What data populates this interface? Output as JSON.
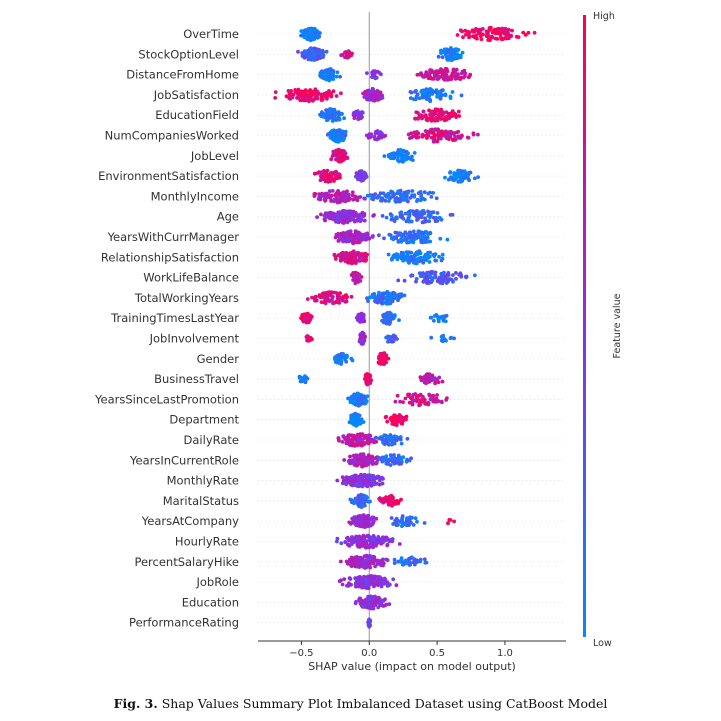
{
  "chart_data": {
    "type": "scatter",
    "subtype": "shap-beeswarm-summary",
    "xlabel": "SHAP value (impact on model output)",
    "x_ticks": [
      -0.5,
      0.0,
      0.5,
      1.0
    ],
    "x_tick_labels": [
      "−0.5",
      "0.0",
      "0.5",
      "1.0"
    ],
    "xlim": [
      -0.82,
      1.45
    ],
    "zero_line": true,
    "colorbar": {
      "label": "Feature value",
      "high_label": "High",
      "low_label": "Low",
      "high_color": "#ff0052",
      "low_color": "#008bfb"
    },
    "features": [
      {
        "name": "OverTime",
        "clusters": [
          {
            "c": -0.43,
            "w": 0.1,
            "v": 0.05,
            "n": 110
          },
          {
            "c": 0.9,
            "w": 0.42,
            "v": 0.95,
            "n": 100
          }
        ]
      },
      {
        "name": "StockOptionLevel",
        "clusters": [
          {
            "c": -0.42,
            "w": 0.14,
            "v": 0.25,
            "n": 90
          },
          {
            "c": -0.16,
            "w": 0.08,
            "v": 0.85,
            "n": 20
          },
          {
            "c": 0.6,
            "w": 0.14,
            "v": 0.05,
            "n": 65
          }
        ]
      },
      {
        "name": "DistanceFromHome",
        "clusters": [
          {
            "c": -0.3,
            "w": 0.1,
            "v": 0.05,
            "n": 65
          },
          {
            "c": 0.04,
            "w": 0.09,
            "v": 0.5,
            "n": 20
          },
          {
            "c": 0.56,
            "w": 0.3,
            "v": 0.8,
            "n": 100
          }
        ]
      },
      {
        "name": "JobSatisfaction",
        "clusters": [
          {
            "c": -0.45,
            "w": 0.35,
            "v": 0.9,
            "n": 120
          },
          {
            "c": 0.03,
            "w": 0.12,
            "v": 0.55,
            "n": 70
          },
          {
            "c": 0.45,
            "w": 0.28,
            "v": 0.1,
            "n": 70
          }
        ]
      },
      {
        "name": "EducationField",
        "clusters": [
          {
            "c": -0.28,
            "w": 0.14,
            "v": 0.1,
            "n": 80
          },
          {
            "c": -0.08,
            "w": 0.08,
            "v": 0.55,
            "n": 25
          },
          {
            "c": 0.5,
            "w": 0.28,
            "v": 0.9,
            "n": 80
          }
        ]
      },
      {
        "name": "NumCompaniesWorked",
        "clusters": [
          {
            "c": -0.23,
            "w": 0.12,
            "v": 0.1,
            "n": 80
          },
          {
            "c": 0.06,
            "w": 0.1,
            "v": 0.55,
            "n": 30
          },
          {
            "c": 0.5,
            "w": 0.38,
            "v": 0.8,
            "n": 100
          }
        ]
      },
      {
        "name": "JobLevel",
        "clusters": [
          {
            "c": -0.22,
            "w": 0.1,
            "v": 0.85,
            "n": 75
          },
          {
            "c": 0.24,
            "w": 0.18,
            "v": 0.05,
            "n": 70
          }
        ]
      },
      {
        "name": "EnvironmentSatisfaction",
        "clusters": [
          {
            "c": -0.3,
            "w": 0.15,
            "v": 0.9,
            "n": 70
          },
          {
            "c": -0.06,
            "w": 0.07,
            "v": 0.45,
            "n": 40
          },
          {
            "c": 0.67,
            "w": 0.18,
            "v": 0.05,
            "n": 55
          }
        ]
      },
      {
        "name": "MonthlyIncome",
        "clusters": [
          {
            "c": -0.22,
            "w": 0.28,
            "v": 0.65,
            "n": 100
          },
          {
            "c": 0.25,
            "w": 0.38,
            "v": 0.15,
            "n": 90
          }
        ]
      },
      {
        "name": "Age",
        "clusters": [
          {
            "c": -0.18,
            "w": 0.28,
            "v": 0.55,
            "n": 150
          },
          {
            "c": 0.35,
            "w": 0.38,
            "v": 0.2,
            "n": 90
          }
        ]
      },
      {
        "name": "YearsWithCurrManager",
        "clusters": [
          {
            "c": -0.12,
            "w": 0.22,
            "v": 0.6,
            "n": 110
          },
          {
            "c": 0.33,
            "w": 0.35,
            "v": 0.15,
            "n": 90
          }
        ]
      },
      {
        "name": "RelationshipSatisfaction",
        "clusters": [
          {
            "c": -0.12,
            "w": 0.2,
            "v": 0.8,
            "n": 110
          },
          {
            "c": 0.35,
            "w": 0.33,
            "v": 0.1,
            "n": 85
          }
        ]
      },
      {
        "name": "WorkLifeBalance",
        "clusters": [
          {
            "c": -0.1,
            "w": 0.06,
            "v": 0.7,
            "n": 55
          },
          {
            "c": 0.5,
            "w": 0.38,
            "v": 0.25,
            "n": 90
          }
        ]
      },
      {
        "name": "TotalWorkingYears",
        "clusters": [
          {
            "c": -0.28,
            "w": 0.22,
            "v": 0.85,
            "n": 70
          },
          {
            "c": 0.12,
            "w": 0.22,
            "v": 0.15,
            "n": 95
          }
        ]
      },
      {
        "name": "TrainingTimesLastYear",
        "clusters": [
          {
            "c": -0.46,
            "w": 0.08,
            "v": 0.92,
            "n": 35
          },
          {
            "c": -0.06,
            "w": 0.05,
            "v": 0.55,
            "n": 35
          },
          {
            "c": 0.14,
            "w": 0.1,
            "v": 0.12,
            "n": 55
          },
          {
            "c": 0.52,
            "w": 0.16,
            "v": 0.05,
            "n": 20
          }
        ]
      },
      {
        "name": "JobInvolvement",
        "clusters": [
          {
            "c": -0.44,
            "w": 0.05,
            "v": 0.95,
            "n": 15
          },
          {
            "c": -0.05,
            "w": 0.04,
            "v": 0.6,
            "n": 55
          },
          {
            "c": 0.16,
            "w": 0.07,
            "v": 0.25,
            "n": 25
          },
          {
            "c": 0.55,
            "w": 0.12,
            "v": 0.05,
            "n": 15
          }
        ]
      },
      {
        "name": "Gender",
        "clusters": [
          {
            "c": -0.2,
            "w": 0.1,
            "v": 0.05,
            "n": 45
          },
          {
            "c": 0.1,
            "w": 0.07,
            "v": 0.95,
            "n": 65
          }
        ]
      },
      {
        "name": "BusinessTravel",
        "clusters": [
          {
            "c": -0.48,
            "w": 0.07,
            "v": 0.05,
            "n": 18
          },
          {
            "c": -0.01,
            "w": 0.04,
            "v": 0.95,
            "n": 55
          },
          {
            "c": 0.45,
            "w": 0.15,
            "v": 0.7,
            "n": 45
          }
        ]
      },
      {
        "name": "YearsSinceLastPromotion",
        "clusters": [
          {
            "c": -0.08,
            "w": 0.1,
            "v": 0.1,
            "n": 90
          },
          {
            "c": 0.38,
            "w": 0.3,
            "v": 0.8,
            "n": 60
          }
        ]
      },
      {
        "name": "Department",
        "clusters": [
          {
            "c": -0.1,
            "w": 0.07,
            "v": 0.05,
            "n": 85
          },
          {
            "c": 0.2,
            "w": 0.14,
            "v": 0.95,
            "n": 45
          }
        ]
      },
      {
        "name": "DailyRate",
        "clusters": [
          {
            "c": -0.08,
            "w": 0.22,
            "v": 0.7,
            "n": 100
          },
          {
            "c": 0.15,
            "w": 0.18,
            "v": 0.2,
            "n": 50
          }
        ]
      },
      {
        "name": "YearsInCurrentRole",
        "clusters": [
          {
            "c": -0.05,
            "w": 0.2,
            "v": 0.65,
            "n": 120
          },
          {
            "c": 0.18,
            "w": 0.18,
            "v": 0.15,
            "n": 50
          }
        ]
      },
      {
        "name": "MonthlyRate",
        "clusters": [
          {
            "c": -0.05,
            "w": 0.25,
            "v": 0.5,
            "n": 130
          }
        ]
      },
      {
        "name": "MaritalStatus",
        "clusters": [
          {
            "c": -0.06,
            "w": 0.1,
            "v": 0.2,
            "n": 80
          },
          {
            "c": 0.15,
            "w": 0.12,
            "v": 0.95,
            "n": 45
          }
        ]
      },
      {
        "name": "YearsAtCompany",
        "clusters": [
          {
            "c": -0.04,
            "w": 0.15,
            "v": 0.55,
            "n": 110
          },
          {
            "c": 0.25,
            "w": 0.2,
            "v": 0.15,
            "n": 40
          },
          {
            "c": 0.6,
            "w": 0.07,
            "v": 0.95,
            "n": 4
          }
        ]
      },
      {
        "name": "HourlyRate",
        "clusters": [
          {
            "c": -0.02,
            "w": 0.3,
            "v": 0.5,
            "n": 140
          }
        ]
      },
      {
        "name": "PercentSalaryHike",
        "clusters": [
          {
            "c": -0.02,
            "w": 0.25,
            "v": 0.55,
            "n": 120
          },
          {
            "c": 0.3,
            "w": 0.2,
            "v": 0.15,
            "n": 35
          }
        ]
      },
      {
        "name": "JobRole",
        "clusters": [
          {
            "c": 0.0,
            "w": 0.3,
            "v": 0.5,
            "n": 150
          }
        ]
      },
      {
        "name": "Education",
        "clusters": [
          {
            "c": 0.02,
            "w": 0.18,
            "v": 0.5,
            "n": 90
          }
        ]
      },
      {
        "name": "PerformanceRating",
        "clusters": [
          {
            "c": 0.0,
            "w": 0.015,
            "v": 0.3,
            "n": 25
          }
        ]
      }
    ]
  },
  "caption": {
    "fig": "Fig. 3.",
    "text": "Shap Values Summary Plot Imbalanced Dataset using CatBoost Model"
  }
}
